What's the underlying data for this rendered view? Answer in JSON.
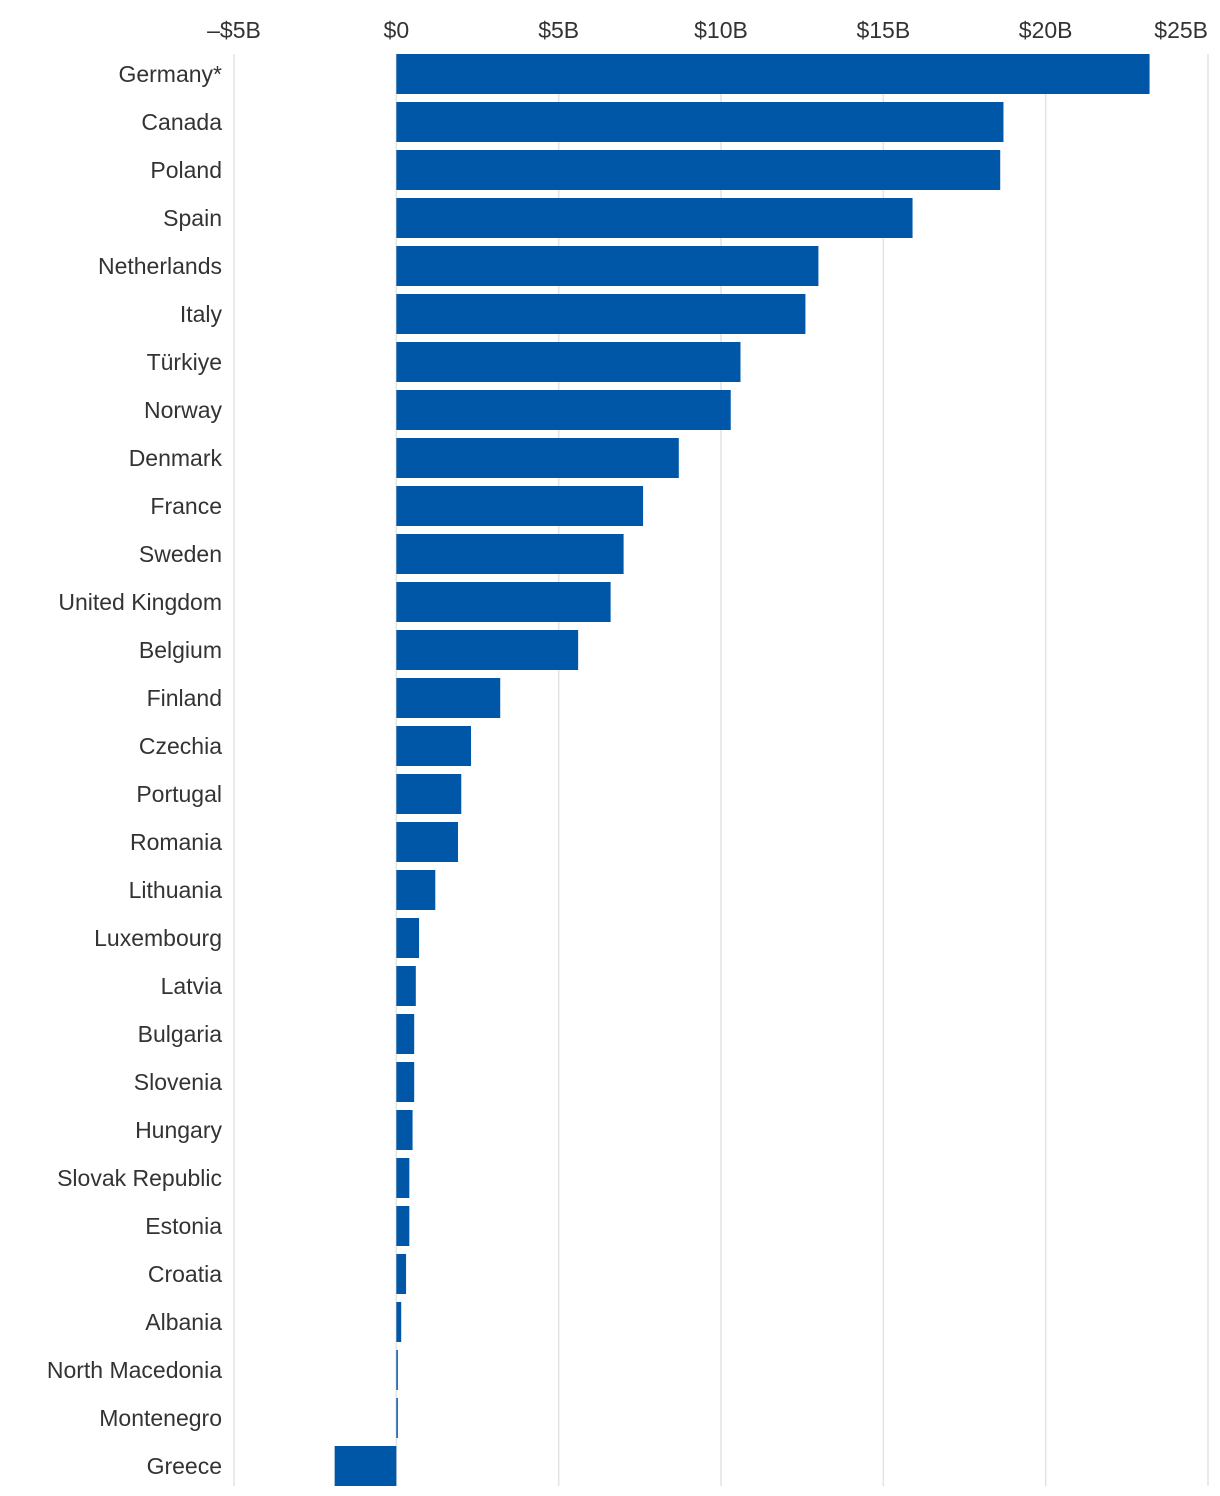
{
  "chart_data": {
    "type": "bar",
    "orientation": "horizontal",
    "categories": [
      "Germany*",
      "Canada",
      "Poland",
      "Spain",
      "Netherlands",
      "Italy",
      "Türkiye",
      "Norway",
      "Denmark",
      "France",
      "Sweden",
      "United Kingdom",
      "Belgium",
      "Finland",
      "Czechia",
      "Portugal",
      "Romania",
      "Lithuania",
      "Luxembourg",
      "Latvia",
      "Bulgaria",
      "Slovenia",
      "Hungary",
      "Slovak Republic",
      "Estonia",
      "Croatia",
      "Albania",
      "North Macedonia",
      "Montenegro",
      "Greece"
    ],
    "values": [
      23.2,
      18.7,
      18.6,
      15.9,
      13.0,
      12.6,
      10.6,
      10.3,
      8.7,
      7.6,
      7.0,
      6.6,
      5.6,
      3.2,
      2.3,
      2.0,
      1.9,
      1.2,
      0.7,
      0.6,
      0.55,
      0.55,
      0.5,
      0.4,
      0.4,
      0.3,
      0.15,
      0.03,
      0.03,
      -1.9
    ],
    "xlim": [
      -5,
      25
    ],
    "xticks": [
      -5,
      0,
      5,
      10,
      15,
      20,
      25
    ],
    "xtick_labels": [
      "–$5B",
      "$0",
      "$5B",
      "$10B",
      "$15B",
      "$20B",
      "$25B"
    ],
    "axis_position": "top",
    "grid": true,
    "bar_color": "#0056a7",
    "title": "",
    "xlabel": "",
    "ylabel": ""
  }
}
